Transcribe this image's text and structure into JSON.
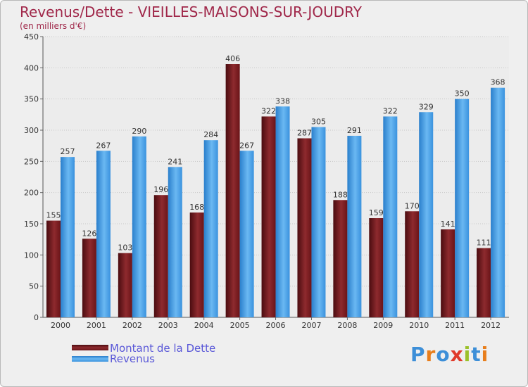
{
  "chart_data": {
    "type": "bar",
    "title": "Revenus/Dette - VIEILLES-MAISONS-SUR-JOUDRY",
    "subtitle": "(en milliers d'€)",
    "categories": [
      "2000",
      "2001",
      "2002",
      "2003",
      "2004",
      "2005",
      "2006",
      "2007",
      "2008",
      "2009",
      "2010",
      "2011",
      "2012"
    ],
    "series": [
      {
        "name": "Montant de la Dette",
        "values": [
          155,
          126,
          103,
          196,
          168,
          406,
          322,
          287,
          188,
          159,
          170,
          141,
          111
        ],
        "color": "#7a1a1e"
      },
      {
        "name": "Revenus",
        "values": [
          257,
          267,
          290,
          241,
          284,
          267,
          338,
          305,
          291,
          322,
          329,
          350,
          368
        ],
        "color": "#3f9be2"
      }
    ],
    "ylim": [
      0,
      450
    ],
    "yticks": [
      0,
      50,
      100,
      150,
      200,
      250,
      300,
      350,
      400,
      450
    ],
    "grid": true,
    "legend_position": "bottom-left"
  },
  "logo": {
    "text": "Proxiti",
    "letters": [
      "P",
      "r",
      "o",
      "x",
      "i",
      "t",
      "i"
    ],
    "colors": [
      "#3d8fd8",
      "#e87e1c",
      "#3d8fd8",
      "#e03a2a",
      "#9bc12a",
      "#3d8fd8",
      "#e87e1c"
    ]
  }
}
